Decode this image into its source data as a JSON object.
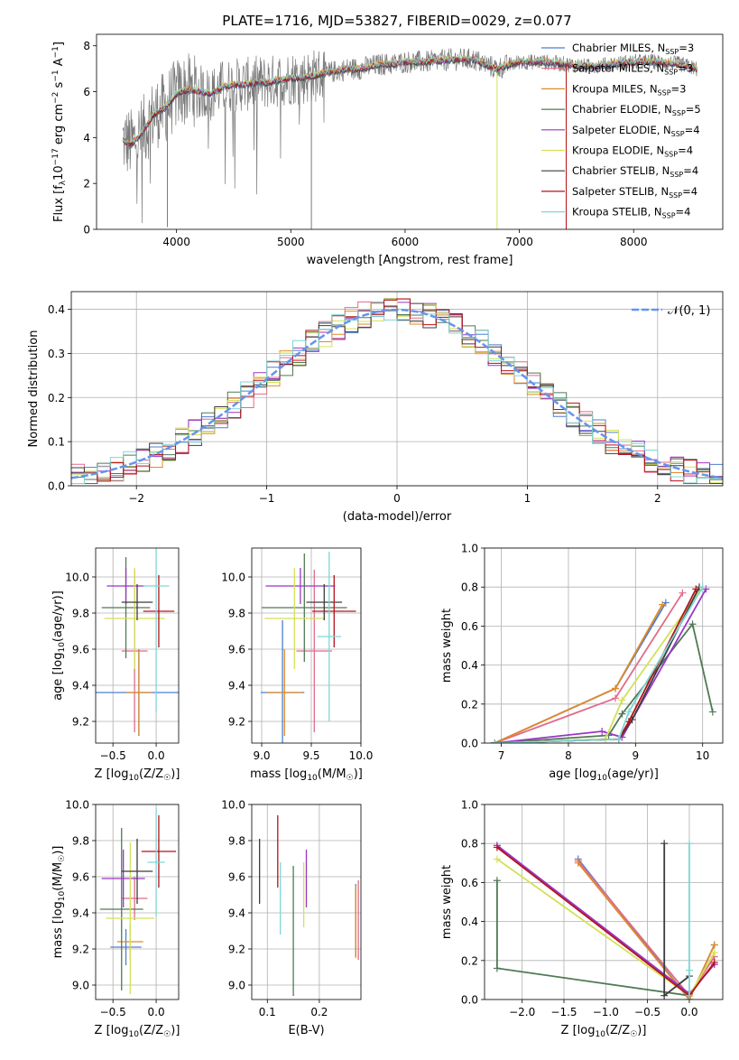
{
  "figure": {
    "title": "PLATE=1716, MJD=53827, FIBERID=0029, z=0.077"
  },
  "colors": {
    "Chabrier MILES": "#4c7fd0",
    "Salpeter MILES": "#e06b8a",
    "Kroupa MILES": "#e08a2a",
    "Chabrier ELODIE": "#4f7a53",
    "Salpeter ELODIE": "#9b35c7",
    "Kroupa ELODIE": "#d4e157",
    "Chabrier STELIB": "#3c3c3c",
    "Salpeter STELIB": "#b3121a",
    "Kroupa STELIB": "#7fd6d4",
    "data": "#7a7a7a",
    "gaussian": "#6495ed"
  },
  "chart_data": [
    {
      "id": "spectrum",
      "type": "line",
      "title": "PLATE=1716, MJD=53827, FIBERID=0029, z=0.077",
      "xlabel": "wavelength [Angstrom, rest frame]",
      "ylabel": "Flux [f_λ10^{-17} erg cm^{-2} s^{-1} A^{-1}]",
      "xlim": [
        3300,
        8780
      ],
      "ylim": [
        0,
        8.5
      ],
      "xticks": [
        4000,
        5000,
        6000,
        7000,
        8000
      ],
      "yticks": [
        0,
        2,
        4,
        6,
        8
      ],
      "grid": false,
      "legend_position": "right",
      "legend": [
        {
          "base": "Chabrier MILES, N",
          "sub": "SSP",
          "tail": "=3"
        },
        {
          "base": "Salpeter MILES, N",
          "sub": "SSP",
          "tail": "=3"
        },
        {
          "base": "Kroupa MILES, N",
          "sub": "SSP",
          "tail": "=3"
        },
        {
          "base": "Chabrier ELODIE, N",
          "sub": "SSP",
          "tail": "=5"
        },
        {
          "base": "Salpeter ELODIE, N",
          "sub": "SSP",
          "tail": "=4"
        },
        {
          "base": "Kroupa ELODIE, N",
          "sub": "SSP",
          "tail": "=4"
        },
        {
          "base": "Chabrier STELIB, N",
          "sub": "SSP",
          "tail": "=4"
        },
        {
          "base": "Salpeter STELIB, N",
          "sub": "SSP",
          "tail": "=4"
        },
        {
          "base": "Kroupa STELIB, N",
          "sub": "SSP",
          "tail": "=4"
        }
      ],
      "continuum": {
        "x": [
          3530,
          3600,
          3700,
          3800,
          3900,
          4000,
          4100,
          4200,
          4300,
          4400,
          4500,
          4600,
          4700,
          4800,
          4900,
          5000,
          5100,
          5200,
          5300,
          5400,
          5500,
          5600,
          5700,
          5800,
          5900,
          6000,
          6200,
          6400,
          6600,
          6800,
          7000,
          7200,
          7400,
          7600,
          7800,
          8000,
          8200,
          8400,
          8550
        ],
        "y": [
          3.9,
          3.7,
          4.2,
          5.0,
          5.3,
          5.9,
          6.1,
          6.0,
          5.9,
          6.2,
          6.3,
          6.3,
          6.4,
          6.4,
          6.5,
          6.6,
          6.6,
          6.7,
          6.8,
          6.9,
          7.0,
          7.0,
          7.1,
          7.2,
          7.2,
          7.3,
          7.3,
          7.4,
          7.4,
          7.0,
          7.3,
          7.3,
          7.2,
          7.1,
          7.2,
          7.3,
          7.3,
          7.2,
          7.0
        ]
      },
      "data_range": [
        3530,
        8560
      ],
      "dips": [
        {
          "x": 3920,
          "y": 0.1
        },
        {
          "x": 5180,
          "y": 0.0
        },
        {
          "x": 6805,
          "y": 0.0
        },
        {
          "x": 7410,
          "y": 0.0
        }
      ]
    },
    {
      "id": "residuals",
      "type": "histogram",
      "xlabel": "(data-model)/error",
      "ylabel": "Normed distribution",
      "xlim": [
        -2.5,
        2.5
      ],
      "ylim": [
        0,
        0.44
      ],
      "xticks": [
        -2,
        -1,
        0,
        1,
        2
      ],
      "yticks": [
        0.0,
        0.1,
        0.2,
        0.3,
        0.4
      ],
      "grid": true,
      "legend_position": "top-right",
      "reference_label": "𝒩(0, 1)",
      "bin_width": 0.1
    },
    {
      "id": "Z_vs_age",
      "type": "errorbar",
      "xlabel": "Z [log₁₀(Z/Z☉)]",
      "ylabel": "age  [log₁₀(age/yr)]",
      "xlim": [
        -0.7,
        0.26
      ],
      "ylim": [
        9.08,
        10.16
      ],
      "xticks": [
        -0.5,
        0.0
      ],
      "yticks": [
        9.2,
        9.4,
        9.6,
        9.8,
        10.0
      ],
      "grid": true,
      "points": [
        {
          "model": "Chabrier MILES",
          "x": -0.2,
          "xerr": 0.5,
          "y": 9.36,
          "yerr": 0.24
        },
        {
          "model": "Salpeter MILES",
          "x": -0.25,
          "xerr": 0.15,
          "y": 9.59,
          "yerr": 0.45
        },
        {
          "model": "Kroupa MILES",
          "x": -0.2,
          "xerr": 0.15,
          "y": 9.36,
          "yerr": 0.24
        },
        {
          "model": "Chabrier ELODIE",
          "x": -0.35,
          "xerr": 0.28,
          "y": 9.83,
          "yerr": 0.28
        },
        {
          "model": "Salpeter ELODIE",
          "x": -0.35,
          "xerr": 0.22,
          "y": 9.95,
          "yerr": 0.1
        },
        {
          "model": "Kroupa ELODIE",
          "x": -0.25,
          "xerr": 0.35,
          "y": 9.77,
          "yerr": 0.28
        },
        {
          "model": "Chabrier STELIB",
          "x": -0.22,
          "xerr": 0.18,
          "y": 9.86,
          "yerr": 0.1
        },
        {
          "model": "Salpeter STELIB",
          "x": 0.03,
          "xerr": 0.18,
          "y": 9.81,
          "yerr": 0.2
        },
        {
          "model": "Kroupa STELIB",
          "x": 0.0,
          "xerr": 0.15,
          "y": 9.95,
          "yerr": 0.7
        }
      ]
    },
    {
      "id": "mass_vs_age",
      "type": "errorbar",
      "xlabel": "mass [log₁₀(M/M☉)]",
      "ylabel": "",
      "xlim": [
        8.9,
        10.0
      ],
      "ylim": [
        9.08,
        10.16
      ],
      "xticks": [
        9.0,
        9.5,
        10.0
      ],
      "yticks": [
        9.2,
        9.4,
        9.6,
        9.8,
        10.0
      ],
      "grid": true,
      "points": [
        {
          "model": "Chabrier MILES",
          "x": 9.21,
          "xerr": 0.22,
          "y": 9.36,
          "yerr": 0.4
        },
        {
          "model": "Salpeter MILES",
          "x": 9.53,
          "xerr": 0.18,
          "y": 9.59,
          "yerr": 0.45
        },
        {
          "model": "Kroupa MILES",
          "x": 9.23,
          "xerr": 0.18,
          "y": 9.36,
          "yerr": 0.24
        },
        {
          "model": "Chabrier ELODIE",
          "x": 9.43,
          "xerr": 0.43,
          "y": 9.83,
          "yerr": 0.3
        },
        {
          "model": "Salpeter ELODIE",
          "x": 9.39,
          "xerr": 0.35,
          "y": 9.95,
          "yerr": 0.1
        },
        {
          "model": "Kroupa ELODIE",
          "x": 9.33,
          "xerr": 0.3,
          "y": 9.77,
          "yerr": 0.28
        },
        {
          "model": "Chabrier STELIB",
          "x": 9.63,
          "xerr": 0.18,
          "y": 9.86,
          "yerr": 0.1
        },
        {
          "model": "Salpeter STELIB",
          "x": 9.73,
          "xerr": 0.22,
          "y": 9.81,
          "yerr": 0.2
        },
        {
          "model": "Kroupa STELIB",
          "x": 9.68,
          "xerr": 0.12,
          "y": 9.67,
          "yerr": 0.47
        }
      ]
    },
    {
      "id": "weight_vs_age",
      "type": "line",
      "xlabel": "age  [log₁₀(age/yr)]",
      "ylabel": "mass weight",
      "xlim": [
        6.75,
        10.3
      ],
      "ylim": [
        0,
        1.0
      ],
      "xticks": [
        7,
        8,
        9,
        10
      ],
      "yticks": [
        0.0,
        0.2,
        0.4,
        0.6,
        0.8,
        1.0
      ],
      "grid": true,
      "series": [
        {
          "model": "Chabrier MILES",
          "x": [
            6.9,
            8.7,
            9.45
          ],
          "y": [
            0.0,
            0.28,
            0.72
          ]
        },
        {
          "model": "Salpeter MILES",
          "x": [
            6.9,
            8.7,
            9.7
          ],
          "y": [
            0.0,
            0.23,
            0.77
          ]
        },
        {
          "model": "Kroupa MILES",
          "x": [
            6.9,
            8.7,
            9.4
          ],
          "y": [
            0.0,
            0.28,
            0.71
          ]
        },
        {
          "model": "Chabrier ELODIE",
          "x": [
            6.9,
            8.6,
            8.8,
            9.85,
            10.15
          ],
          "y": [
            0.0,
            0.04,
            0.15,
            0.61,
            0.16
          ]
        },
        {
          "model": "Salpeter ELODIE",
          "x": [
            6.9,
            8.5,
            8.8,
            10.05
          ],
          "y": [
            0.0,
            0.06,
            0.03,
            0.79
          ]
        },
        {
          "model": "Kroupa ELODIE",
          "x": [
            6.9,
            8.55,
            8.8,
            9.95
          ],
          "y": [
            0.0,
            0.02,
            0.22,
            0.78
          ]
        },
        {
          "model": "Chabrier STELIB",
          "x": [
            6.9,
            8.75,
            8.95,
            9.95
          ],
          "y": [
            0.0,
            0.02,
            0.12,
            0.8
          ]
        },
        {
          "model": "Salpeter STELIB",
          "x": [
            6.9,
            8.75,
            8.9,
            9.9
          ],
          "y": [
            0.0,
            0.02,
            0.11,
            0.79
          ]
        },
        {
          "model": "Kroupa STELIB",
          "x": [
            6.9,
            8.75,
            8.9,
            10.0
          ],
          "y": [
            0.0,
            0.02,
            0.16,
            0.8
          ]
        }
      ]
    },
    {
      "id": "Z_vs_mass",
      "type": "errorbar",
      "xlabel": "Z [log₁₀(Z/Z☉)]",
      "ylabel": "mass [log₁₀(M/M☉)]",
      "xlim": [
        -0.7,
        0.26
      ],
      "ylim": [
        8.92,
        10.0
      ],
      "xticks": [
        -0.5,
        0.0
      ],
      "yticks": [
        9.0,
        9.2,
        9.4,
        9.6,
        9.8,
        10.0
      ],
      "grid": true,
      "points": [
        {
          "model": "Chabrier MILES",
          "x": -0.35,
          "xerr": 0.18,
          "y": 9.21,
          "yerr": 0.1
        },
        {
          "model": "Salpeter MILES",
          "x": -0.25,
          "xerr": 0.15,
          "y": 9.48,
          "yerr": 0.12
        },
        {
          "model": "Kroupa MILES",
          "x": -0.3,
          "xerr": 0.15,
          "y": 9.24,
          "yerr": 0.1
        },
        {
          "model": "Chabrier ELODIE",
          "x": -0.4,
          "xerr": 0.25,
          "y": 9.42,
          "yerr": 0.45
        },
        {
          "model": "Salpeter ELODIE",
          "x": -0.38,
          "xerr": 0.25,
          "y": 9.59,
          "yerr": 0.16
        },
        {
          "model": "Kroupa ELODIE",
          "x": -0.3,
          "xerr": 0.28,
          "y": 9.37,
          "yerr": 0.42
        },
        {
          "model": "Chabrier STELIB",
          "x": -0.22,
          "xerr": 0.18,
          "y": 9.63,
          "yerr": 0.18
        },
        {
          "model": "Salpeter STELIB",
          "x": 0.03,
          "xerr": 0.2,
          "y": 9.74,
          "yerr": 0.2
        },
        {
          "model": "Kroupa STELIB",
          "x": 0.0,
          "xerr": 0.1,
          "y": 9.68,
          "yerr": 0.3
        }
      ]
    },
    {
      "id": "EBV_vs_mass",
      "type": "errorbar",
      "xlabel": "E(B-V)",
      "ylabel": "",
      "xlim": [
        0.07,
        0.28
      ],
      "ylim": [
        8.92,
        10.0
      ],
      "xticks": [
        0.1,
        0.2
      ],
      "yticks": [
        9.0,
        9.2,
        9.4,
        9.6,
        9.8,
        10.0
      ],
      "grid": true,
      "points": [
        {
          "model": "Chabrier MILES",
          "x": 0.27,
          "y": 9.36,
          "yerr": 0.2
        },
        {
          "model": "Salpeter MILES",
          "x": 0.275,
          "y": 9.36,
          "yerr": 0.22
        },
        {
          "model": "Kroupa MILES",
          "x": 0.27,
          "y": 9.35,
          "yerr": 0.2
        },
        {
          "model": "Chabrier ELODIE",
          "x": 0.15,
          "y": 9.3,
          "yerr": 0.36
        },
        {
          "model": "Salpeter ELODIE",
          "x": 0.175,
          "y": 9.59,
          "yerr": 0.16
        },
        {
          "model": "Kroupa ELODIE",
          "x": 0.17,
          "y": 9.5,
          "yerr": 0.18
        },
        {
          "model": "Chabrier STELIB",
          "x": 0.085,
          "y": 9.63,
          "yerr": 0.18
        },
        {
          "model": "Salpeter STELIB",
          "x": 0.12,
          "y": 9.74,
          "yerr": 0.2
        },
        {
          "model": "Kroupa STELIB",
          "x": 0.125,
          "y": 9.48,
          "yerr": 0.2
        }
      ]
    },
    {
      "id": "weight_vs_Z",
      "type": "line",
      "xlabel": "Z [log₁₀(Z/Z☉)]",
      "ylabel": "mass weight",
      "xlim": [
        -2.45,
        0.4
      ],
      "ylim": [
        0,
        1.0
      ],
      "xticks": [
        -2.0,
        -1.5,
        -1.0,
        -0.5,
        0.0
      ],
      "yticks": [
        0.0,
        0.2,
        0.4,
        0.6,
        0.8,
        1.0
      ],
      "grid": true,
      "series": [
        {
          "model": "Chabrier MILES",
          "x": [
            -1.33,
            0.0,
            0.3
          ],
          "y": [
            0.72,
            0.0,
            0.28
          ]
        },
        {
          "model": "Salpeter MILES",
          "x": [
            -1.33,
            0.0,
            0.3
          ],
          "y": [
            0.71,
            0.02,
            0.22
          ]
        },
        {
          "model": "Kroupa MILES",
          "x": [
            -1.33,
            0.0,
            0.3
          ],
          "y": [
            0.7,
            0.0,
            0.28
          ]
        },
        {
          "model": "Chabrier ELODIE",
          "x": [
            -2.3,
            -2.3,
            0.0,
            0.0
          ],
          "y": [
            0.61,
            0.16,
            0.02,
            0.04
          ]
        },
        {
          "model": "Salpeter ELODIE",
          "x": [
            -2.3,
            0.0,
            0.3
          ],
          "y": [
            0.79,
            0.03,
            0.18
          ]
        },
        {
          "model": "Kroupa ELODIE",
          "x": [
            -2.3,
            0.0,
            0.3
          ],
          "y": [
            0.72,
            0.02,
            0.24
          ]
        },
        {
          "model": "Chabrier STELIB",
          "x": [
            -0.3,
            -0.3,
            0.0
          ],
          "y": [
            0.8,
            0.02,
            0.12
          ]
        },
        {
          "model": "Salpeter STELIB",
          "x": [
            -2.3,
            0.0,
            0.3
          ],
          "y": [
            0.78,
            0.02,
            0.19
          ]
        },
        {
          "model": "Kroupa STELIB",
          "x": [
            0.0,
            0.0,
            0.0
          ],
          "y": [
            0.8,
            0.02,
            0.15
          ]
        }
      ]
    }
  ]
}
